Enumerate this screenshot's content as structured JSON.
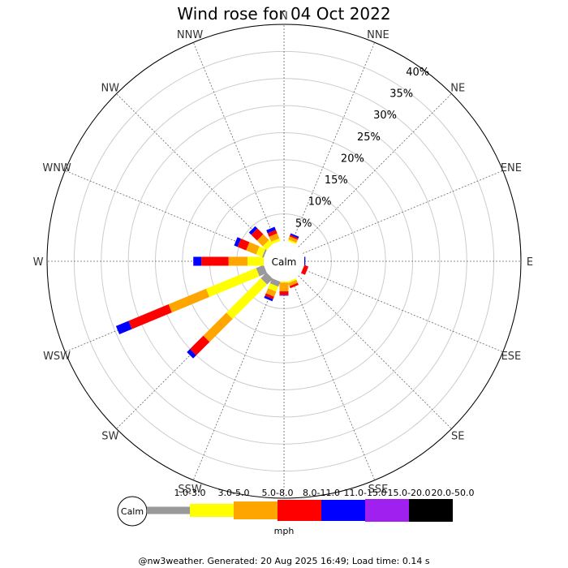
{
  "chart_data": {
    "type": "wind-rose",
    "title": "Wind rose for 04 Oct 2022",
    "directions": [
      "N",
      "NNE",
      "NE",
      "ENE",
      "E",
      "ESE",
      "SE",
      "SSE",
      "S",
      "SSW",
      "SW",
      "WSW",
      "W",
      "WNW",
      "NW",
      "NNW"
    ],
    "radial_labels": [
      "5%",
      "10%",
      "15%",
      "20%",
      "25%",
      "30%",
      "35%",
      "40%"
    ],
    "radial_max_percent": 40,
    "center_label": "Calm",
    "bins": [
      "1.0-3.0",
      "3.0-5.0",
      "5.0-8.0",
      "8.0-11.0",
      "11.0-15.0",
      "15.0-20.0",
      "20.0-50.0"
    ],
    "bin_colors": [
      "#999999",
      "#ffff00",
      "#ffa500",
      "#ff0000",
      "#0000ff",
      "#a020f0",
      "#000000"
    ],
    "units": "mph",
    "series": [
      {
        "direction": "N",
        "cumulative_percent": [
          0,
          0,
          0,
          0,
          0,
          0,
          0
        ]
      },
      {
        "direction": "NNE",
        "cumulative_percent": [
          0,
          0.3,
          0.9,
          1.2,
          1.5,
          1.5,
          1.5
        ]
      },
      {
        "direction": "NE",
        "cumulative_percent": [
          0,
          0,
          0,
          0,
          0,
          0,
          0
        ]
      },
      {
        "direction": "ENE",
        "cumulative_percent": [
          0,
          0,
          0,
          0,
          0,
          0,
          0
        ]
      },
      {
        "direction": "E",
        "cumulative_percent": [
          0,
          0,
          0,
          0,
          0.2,
          0.2,
          0.2
        ]
      },
      {
        "direction": "ESE",
        "cumulative_percent": [
          0,
          0,
          0,
          0.8,
          0.8,
          0.8,
          0.8
        ]
      },
      {
        "direction": "SE",
        "cumulative_percent": [
          0,
          0,
          0,
          0,
          0,
          0,
          0
        ]
      },
      {
        "direction": "SSE",
        "cumulative_percent": [
          0,
          0.3,
          0.9,
          1.3,
          1.3,
          1.3,
          1.3
        ]
      },
      {
        "direction": "S",
        "cumulative_percent": [
          0,
          0.2,
          1.8,
          2.5,
          2.6,
          2.6,
          2.6
        ]
      },
      {
        "direction": "SSW",
        "cumulative_percent": [
          1.0,
          2.0,
          3.0,
          3.5,
          3.9,
          3.9,
          3.9
        ]
      },
      {
        "direction": "SW",
        "cumulative_percent": [
          1.5,
          10.5,
          16.5,
          20.0,
          20.8,
          20.8,
          20.8
        ]
      },
      {
        "direction": "WSW",
        "cumulative_percent": [
          1.5,
          11.5,
          19.0,
          27.0,
          29.5,
          29.5,
          29.5
        ]
      },
      {
        "direction": "W",
        "cumulative_percent": [
          0,
          3.0,
          6.5,
          11.5,
          13.0,
          13.0,
          13.0
        ]
      },
      {
        "direction": "WNW",
        "cumulative_percent": [
          0.3,
          1.5,
          3.5,
          5.2,
          5.9,
          5.9,
          5.9
        ]
      },
      {
        "direction": "NW",
        "cumulative_percent": [
          0,
          1.0,
          2.5,
          4.0,
          4.6,
          4.6,
          4.6
        ]
      },
      {
        "direction": "NNW",
        "cumulative_percent": [
          0,
          0.5,
          1.5,
          2.2,
          2.8,
          2.8,
          2.8
        ]
      }
    ],
    "footer": "@nw3weather. Generated: 20 Aug 2025 16:49; Load time: 0.14 s"
  }
}
